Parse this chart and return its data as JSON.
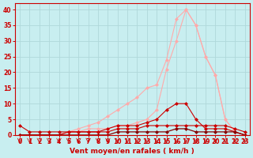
{
  "title": "",
  "xlabel": "Vent moyen/en rafales ( km/h )",
  "ylabel": "",
  "background_color": "#c8eef0",
  "grid_color": "#b0d8da",
  "x": [
    0,
    1,
    2,
    3,
    4,
    5,
    6,
    7,
    8,
    9,
    10,
    11,
    12,
    13,
    14,
    15,
    16,
    17,
    18,
    19,
    20,
    21,
    22,
    23
  ],
  "ylim": [
    0,
    42
  ],
  "xlim": [
    -0.5,
    23.5
  ],
  "line1_data": [
    3,
    1,
    1,
    1,
    1,
    1,
    1,
    1,
    1,
    1,
    2,
    2,
    2,
    3,
    3,
    3,
    3,
    3,
    3,
    3,
    3,
    3,
    2,
    1
  ],
  "line2_data": [
    0,
    0,
    0,
    0,
    0,
    0,
    0,
    0,
    0,
    0,
    1,
    1,
    1,
    1,
    1,
    1,
    2,
    2,
    1,
    1,
    1,
    1,
    1,
    0
  ],
  "line3_data": [
    0,
    0,
    0,
    0,
    0,
    1,
    1,
    1,
    1,
    2,
    3,
    3,
    3,
    4,
    5,
    8,
    10,
    10,
    5,
    2,
    2,
    2,
    1,
    0
  ],
  "line4_data": [
    0,
    0,
    0,
    0,
    0,
    1,
    1,
    2,
    2,
    2,
    3,
    3,
    4,
    5,
    8,
    21,
    30,
    40,
    35,
    25,
    19,
    5,
    1,
    0
  ],
  "line5_data": [
    0,
    0,
    0,
    0,
    0,
    1,
    2,
    3,
    4,
    6,
    8,
    10,
    12,
    15,
    16,
    24,
    37,
    40,
    35,
    25,
    19,
    5,
    1,
    0
  ],
  "color_light": "#ffaaaa",
  "color_mid": "#ff6666",
  "color_dark": "#cc0000",
  "color_darkest": "#880000",
  "marker_size": 2.5,
  "yticks": [
    0,
    5,
    10,
    15,
    20,
    25,
    30,
    35,
    40
  ],
  "xticks": [
    0,
    1,
    2,
    3,
    4,
    5,
    6,
    7,
    8,
    9,
    10,
    11,
    12,
    13,
    14,
    15,
    16,
    17,
    18,
    19,
    20,
    21,
    22,
    23
  ]
}
